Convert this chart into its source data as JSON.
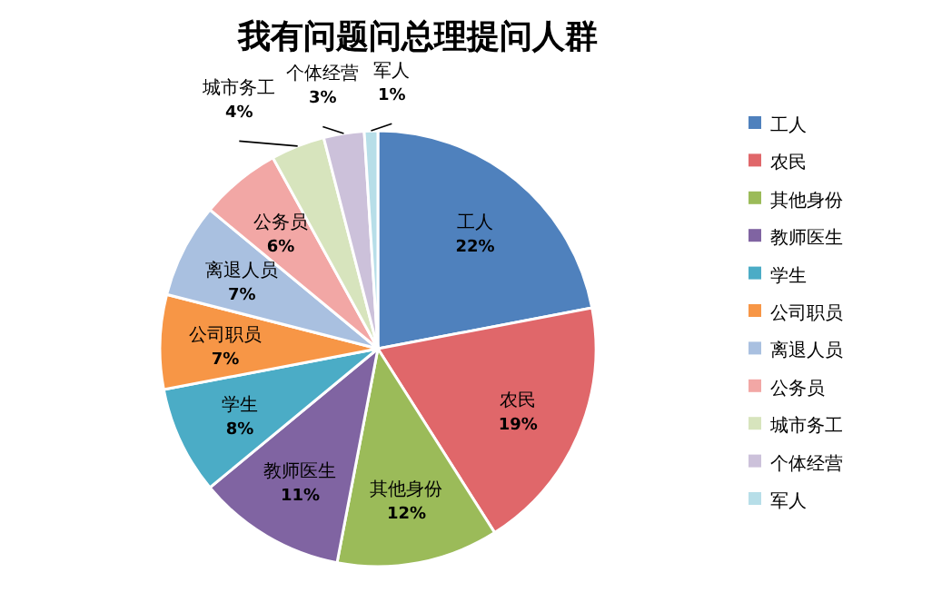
{
  "chart_data": {
    "type": "pie",
    "title": "我有问题问总理提问人群",
    "categories": [
      "工人",
      "农民",
      "其他身份",
      "教师医生",
      "学生",
      "公司职员",
      "离退人员",
      "公务员",
      "城市务工",
      "个体经营",
      "军人"
    ],
    "values": [
      22,
      19,
      12,
      11,
      8,
      7,
      7,
      6,
      4,
      3,
      1
    ],
    "colors": [
      "#4f81bd",
      "#e0676a",
      "#9bbb59",
      "#8064a2",
      "#4bacc6",
      "#f79646",
      "#a9c0e0",
      "#f2a7a5",
      "#d7e4bd",
      "#ccc1da",
      "#b7dee8"
    ],
    "value_labels": [
      "22%",
      "19%",
      "12%",
      "11%",
      "8%",
      "7%",
      "7%",
      "6%",
      "4%",
      "3%",
      "1%"
    ],
    "legend": "right"
  }
}
